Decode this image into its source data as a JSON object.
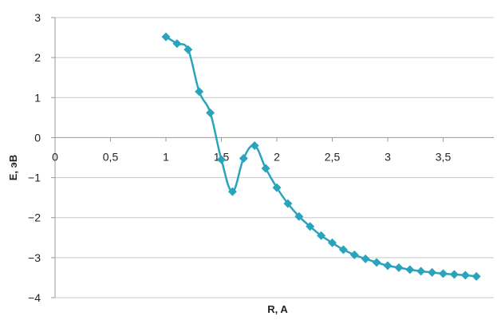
{
  "chart_data": {
    "type": "line",
    "title": "",
    "xlabel": "R, A",
    "ylabel": "E, эВ",
    "xlim": [
      0,
      3.8
    ],
    "ylim": [
      -4,
      3
    ],
    "x_ticks": [
      {
        "value": 0,
        "label": "0"
      },
      {
        "value": 0.5,
        "label": "0,5"
      },
      {
        "value": 1,
        "label": "1"
      },
      {
        "value": 1.5,
        "label": "1,5"
      },
      {
        "value": 2,
        "label": "2"
      },
      {
        "value": 2.5,
        "label": "2,5"
      },
      {
        "value": 3,
        "label": "3"
      },
      {
        "value": 3.5,
        "label": "3,5"
      }
    ],
    "y_ticks": [
      {
        "value": 3,
        "label": "3"
      },
      {
        "value": 2,
        "label": "2"
      },
      {
        "value": 1,
        "label": "1"
      },
      {
        "value": 0,
        "label": "0"
      },
      {
        "value": -1,
        "label": "−1"
      },
      {
        "value": -2,
        "label": "−2"
      },
      {
        "value": -3,
        "label": "−3"
      },
      {
        "value": -4,
        "label": "−4"
      }
    ],
    "grid": "horizontal",
    "legend": "none",
    "series_color": "#2aa3bd",
    "grid_color": "#c8c8c8",
    "axis_color": "#9a9a9a",
    "series": [
      {
        "x": [
          1.0,
          1.1,
          1.2,
          1.3,
          1.4,
          1.5,
          1.6,
          1.7,
          1.8,
          1.9,
          2.0,
          2.1,
          2.2,
          2.3,
          2.4,
          2.5,
          2.6,
          2.7,
          2.8,
          2.9,
          3.0,
          3.1,
          3.2,
          3.3,
          3.4,
          3.5,
          3.6,
          3.7,
          3.8
        ],
        "y": [
          2.52,
          2.35,
          2.2,
          1.15,
          0.62,
          -0.55,
          -1.35,
          -0.52,
          -0.2,
          -0.77,
          -1.25,
          -1.65,
          -1.97,
          -2.22,
          -2.45,
          -2.63,
          -2.8,
          -2.93,
          -3.03,
          -3.12,
          -3.2,
          -3.25,
          -3.3,
          -3.34,
          -3.37,
          -3.4,
          -3.42,
          -3.44,
          -3.47
        ]
      }
    ]
  }
}
